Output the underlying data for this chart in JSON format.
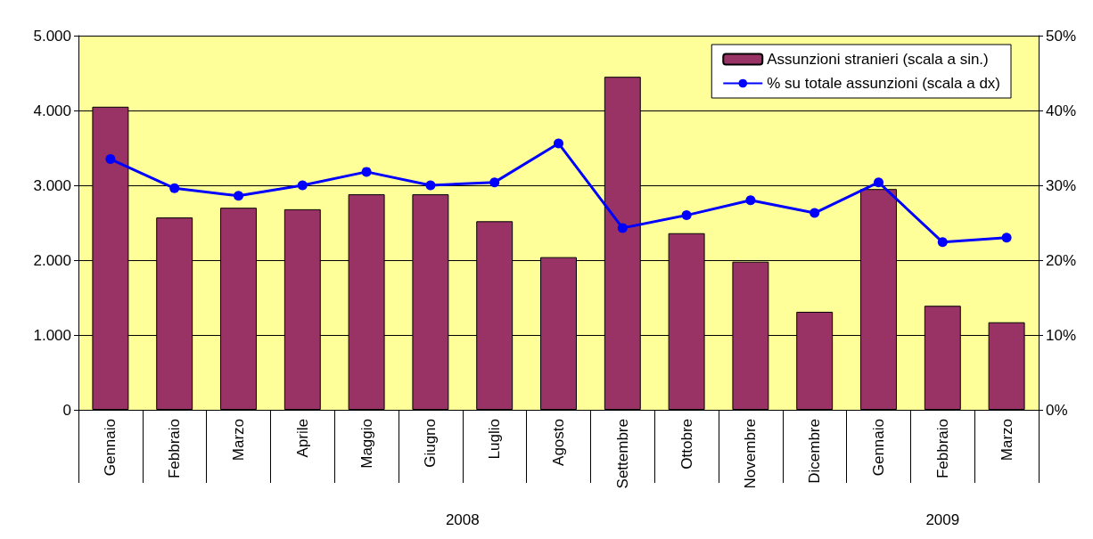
{
  "chart_data": {
    "type": "bar",
    "categories": [
      "Gennaio",
      "Febbraio",
      "Marzo",
      "Aprile",
      "Maggio",
      "Giugno",
      "Luglio",
      "Agosto",
      "Settembre",
      "Ottobre",
      "Novembre",
      "Dicembre",
      "Gennaio",
      "Febbraio",
      "Marzo"
    ],
    "series": [
      {
        "name": "Assunzioni stranieri (scala a sin.)",
        "color": "#993366",
        "values": [
          4050,
          2570,
          2700,
          2680,
          2880,
          2880,
          2520,
          2040,
          4450,
          2360,
          1980,
          1310,
          2950,
          1390,
          1170
        ]
      },
      {
        "name": "% su totale assunzioni (scala a dx)",
        "type": "line",
        "axis": "y2",
        "color": "#0000ff",
        "marker": "circle",
        "values": [
          33.5,
          29.6,
          28.6,
          30.0,
          31.8,
          30.0,
          30.4,
          35.6,
          24.3,
          26.0,
          28.0,
          26.3,
          30.4,
          22.4,
          23.0
        ]
      }
    ],
    "ylim": [
      0,
      5000
    ],
    "yticks": [
      0,
      {
        "value": 1000,
        "label": "1.000"
      },
      {
        "value": 2000,
        "label": "2.000"
      },
      {
        "value": 3000,
        "label": "3.000"
      },
      {
        "value": 4000,
        "label": "4.000"
      },
      {
        "value": 5000,
        "label": "5.000"
      }
    ],
    "y2lim": [
      0,
      50
    ],
    "y2ticks": [
      {
        "value": 0,
        "label": "0%"
      },
      {
        "value": 10,
        "label": "10%"
      },
      {
        "value": 20,
        "label": "20%"
      },
      {
        "value": 30,
        "label": "30%"
      },
      {
        "value": 40,
        "label": "40%"
      },
      {
        "value": 50,
        "label": "50%"
      }
    ],
    "annotations": [
      "2008",
      "2009"
    ],
    "grid": "y",
    "legend": "top right"
  }
}
